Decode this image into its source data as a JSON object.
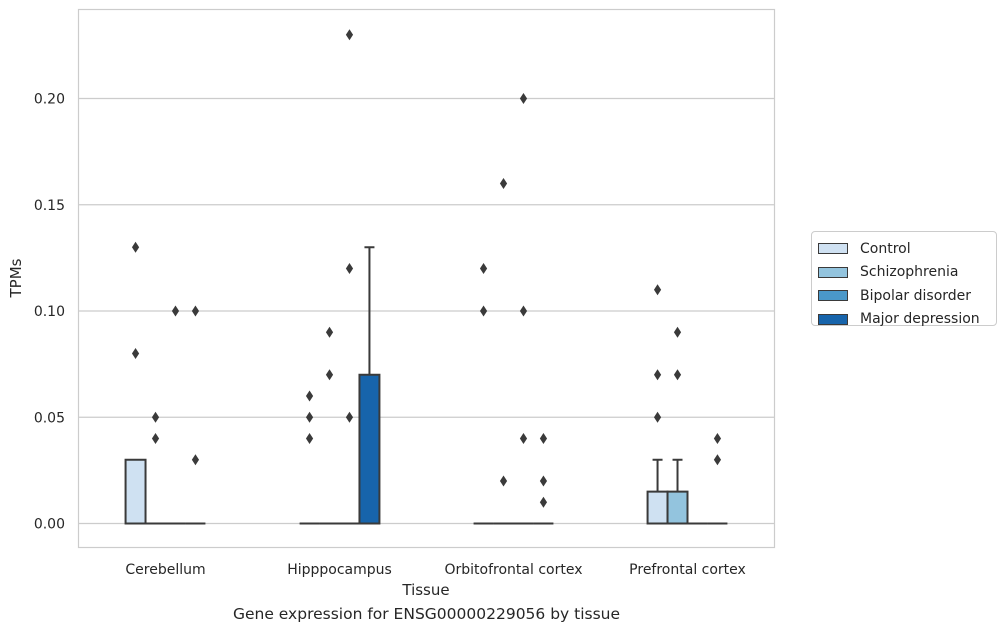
{
  "chart_data": {
    "type": "boxplot",
    "caption": "Gene expression for ENSG00000229056 by tissue",
    "xlabel": "Tissue",
    "ylabel": "TPMs",
    "ylim": [
      -0.011,
      0.242
    ],
    "yticks": [
      "0.00",
      "0.05",
      "0.10",
      "0.15",
      "0.20"
    ],
    "ytick_values": [
      0.0,
      0.05,
      0.1,
      0.15,
      0.2
    ],
    "grid": true,
    "legend_position": "right",
    "categories": [
      "Cerebellum",
      "Hipppocampus",
      "Orbitofrontal cortex",
      "Prefrontal cortex"
    ],
    "series": [
      {
        "name": "Control",
        "color": "#cfe1f2"
      },
      {
        "name": "Schizophrenia",
        "color": "#93c4de"
      },
      {
        "name": "Bipolar disorder",
        "color": "#4a98c9"
      },
      {
        "name": "Major depression",
        "color": "#1764ab"
      }
    ],
    "boxes": [
      {
        "category": 0,
        "series": 0,
        "q1": 0.0,
        "median": 0.0,
        "q3": 0.03,
        "whisker_low": 0.0,
        "whisker_high": 0.03
      },
      {
        "category": 0,
        "series": 1,
        "q1": 0.0,
        "median": 0.0,
        "q3": 0.0,
        "whisker_low": 0.0,
        "whisker_high": 0.0
      },
      {
        "category": 0,
        "series": 2,
        "q1": 0.0,
        "median": 0.0,
        "q3": 0.0,
        "whisker_low": 0.0,
        "whisker_high": 0.0
      },
      {
        "category": 0,
        "series": 3,
        "q1": 0.0,
        "median": 0.0,
        "q3": 0.0,
        "whisker_low": 0.0,
        "whisker_high": 0.0
      },
      {
        "category": 1,
        "series": 0,
        "q1": 0.0,
        "median": 0.0,
        "q3": 0.0,
        "whisker_low": 0.0,
        "whisker_high": 0.0
      },
      {
        "category": 1,
        "series": 1,
        "q1": 0.0,
        "median": 0.0,
        "q3": 0.0,
        "whisker_low": 0.0,
        "whisker_high": 0.0
      },
      {
        "category": 1,
        "series": 2,
        "q1": 0.0,
        "median": 0.0,
        "q3": 0.0,
        "whisker_low": 0.0,
        "whisker_high": 0.0
      },
      {
        "category": 1,
        "series": 3,
        "q1": 0.0,
        "median": 0.0,
        "q3": 0.07,
        "whisker_low": 0.0,
        "whisker_high": 0.13
      },
      {
        "category": 2,
        "series": 0,
        "q1": 0.0,
        "median": 0.0,
        "q3": 0.0,
        "whisker_low": 0.0,
        "whisker_high": 0.0
      },
      {
        "category": 2,
        "series": 1,
        "q1": 0.0,
        "median": 0.0,
        "q3": 0.0,
        "whisker_low": 0.0,
        "whisker_high": 0.0
      },
      {
        "category": 2,
        "series": 2,
        "q1": 0.0,
        "median": 0.0,
        "q3": 0.0,
        "whisker_low": 0.0,
        "whisker_high": 0.0
      },
      {
        "category": 2,
        "series": 3,
        "q1": 0.0,
        "median": 0.0,
        "q3": 0.0,
        "whisker_low": 0.0,
        "whisker_high": 0.0
      },
      {
        "category": 3,
        "series": 0,
        "q1": 0.0,
        "median": 0.0,
        "q3": 0.015,
        "whisker_low": 0.0,
        "whisker_high": 0.03
      },
      {
        "category": 3,
        "series": 1,
        "q1": 0.0,
        "median": 0.0,
        "q3": 0.015,
        "whisker_low": 0.0,
        "whisker_high": 0.03
      },
      {
        "category": 3,
        "series": 2,
        "q1": 0.0,
        "median": 0.0,
        "q3": 0.0,
        "whisker_low": 0.0,
        "whisker_high": 0.0
      },
      {
        "category": 3,
        "series": 3,
        "q1": 0.0,
        "median": 0.0,
        "q3": 0.0,
        "whisker_low": 0.0,
        "whisker_high": 0.0
      }
    ],
    "outliers": [
      {
        "category": 0,
        "series": 0,
        "values": [
          0.13,
          0.08
        ]
      },
      {
        "category": 0,
        "series": 1,
        "values": [
          0.05,
          0.04
        ]
      },
      {
        "category": 0,
        "series": 2,
        "values": [
          0.1
        ]
      },
      {
        "category": 0,
        "series": 3,
        "values": [
          0.1,
          0.03
        ]
      },
      {
        "category": 1,
        "series": 0,
        "values": [
          0.06,
          0.05,
          0.04
        ]
      },
      {
        "category": 1,
        "series": 1,
        "values": [
          0.09,
          0.07
        ]
      },
      {
        "category": 1,
        "series": 2,
        "values": [
          0.23,
          0.12,
          0.05
        ]
      },
      {
        "category": 2,
        "series": 0,
        "values": [
          0.12,
          0.1
        ]
      },
      {
        "category": 2,
        "series": 1,
        "values": [
          0.16,
          0.02
        ]
      },
      {
        "category": 2,
        "series": 2,
        "values": [
          0.2,
          0.1,
          0.04
        ]
      },
      {
        "category": 2,
        "series": 3,
        "values": [
          0.04,
          0.02,
          0.01
        ]
      },
      {
        "category": 3,
        "series": 0,
        "values": [
          0.11,
          0.07,
          0.05
        ]
      },
      {
        "category": 3,
        "series": 1,
        "values": [
          0.09,
          0.07
        ]
      },
      {
        "category": 3,
        "series": 3,
        "values": [
          0.04,
          0.03
        ]
      }
    ]
  }
}
